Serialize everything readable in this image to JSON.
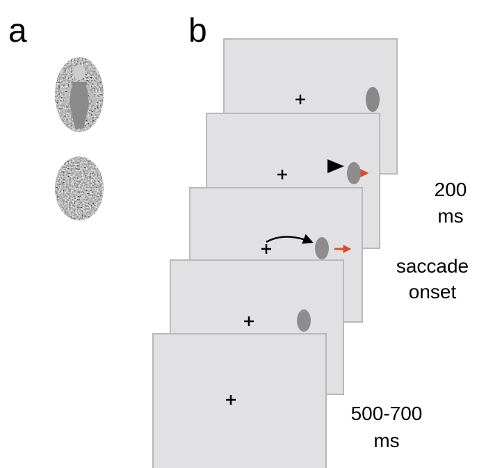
{
  "panel_labels": [
    "a",
    "b"
  ],
  "timings": [
    {
      "lines": [
        "200",
        "ms"
      ]
    },
    {
      "lines": [
        "saccade",
        "onset"
      ]
    },
    {
      "lines": [
        "500-700",
        "ms"
      ]
    }
  ]
}
